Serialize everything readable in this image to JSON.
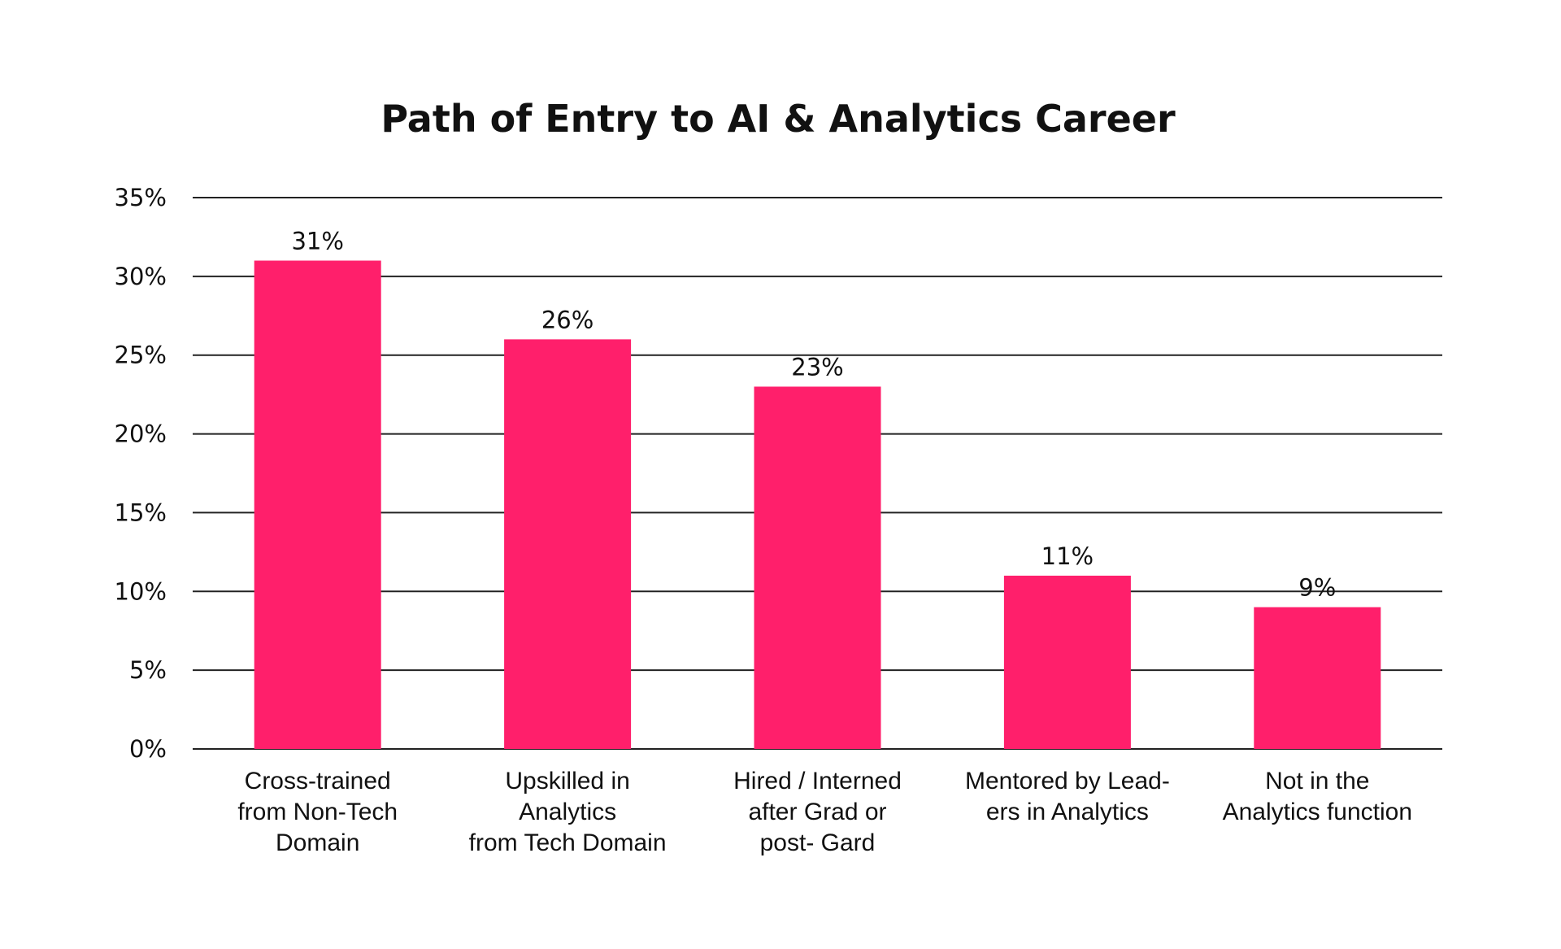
{
  "chart_data": {
    "type": "bar",
    "title": "Path of Entry to AI & Analytics Career",
    "xlabel": "",
    "ylabel": "",
    "ylim": [
      0,
      35
    ],
    "y_ticks": [
      0,
      5,
      10,
      15,
      20,
      25,
      30,
      35
    ],
    "y_tick_labels": [
      "0%",
      "5%",
      "10%",
      "15%",
      "20%",
      "25%",
      "30%",
      "35%"
    ],
    "grid": true,
    "legend": "none",
    "bar_color": "#ff1f6b",
    "categories": [
      [
        "Cross-trained",
        "from Non-Tech",
        "Domain"
      ],
      [
        "Upskilled in",
        "Analytics",
        "from Tech Domain"
      ],
      [
        "Hired / Interned",
        "after Grad or",
        "post- Gard"
      ],
      [
        "Mentored by Lead-",
        "ers in Analytics"
      ],
      [
        "Not in the",
        "Analytics function"
      ]
    ],
    "values": [
      31,
      26,
      23,
      11,
      9
    ],
    "data_labels": [
      "31%",
      "26%",
      "23%",
      "11%",
      "9%"
    ]
  }
}
